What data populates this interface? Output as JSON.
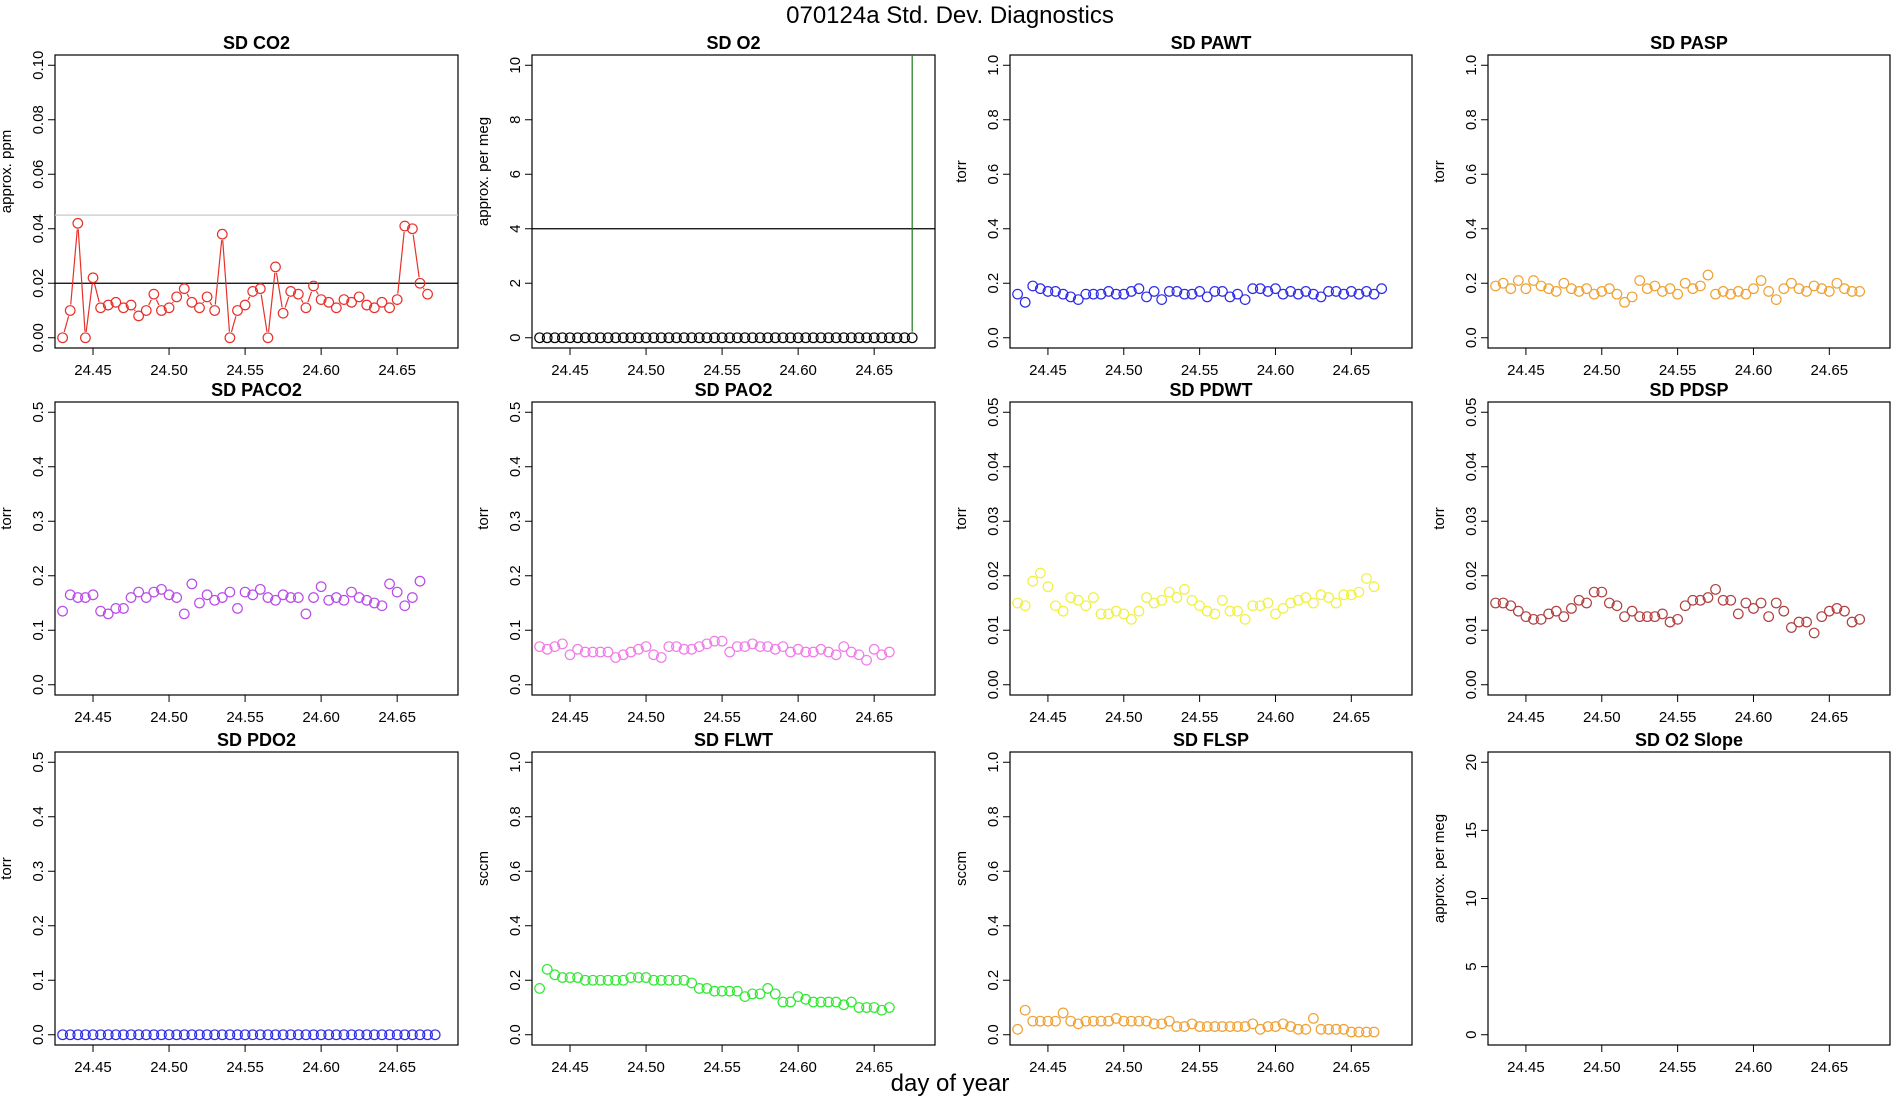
{
  "title": "070124a   Std. Dev. Diagnostics",
  "xlabel": "day of year",
  "colors": {
    "frame": "#000000",
    "ref_dark": "#000000",
    "ref_light": "#c8c8c8",
    "vline": "#1a7a1a"
  },
  "chart_data": [
    {
      "type": "scatter",
      "title": "SD CO2",
      "ylabel": "approx. ppm",
      "color": "#e8302a",
      "connect": true,
      "xlim": [
        24.425,
        24.69
      ],
      "ylim": [
        0,
        0.1
      ],
      "yticks": [
        "0.00",
        "0.02",
        "0.04",
        "0.06",
        "0.08",
        "0.10"
      ],
      "xticks": [
        "24.45",
        "24.50",
        "24.55",
        "24.60",
        "24.65"
      ],
      "hlines": [
        {
          "y": 0.02,
          "color": "#000000"
        },
        {
          "y": 0.045,
          "color": "#c8c8c8"
        }
      ],
      "series": [
        {
          "x0": 24.43,
          "dx": 0.005,
          "values": [
            0.0,
            0.01,
            0.042,
            0.0,
            0.022,
            0.011,
            0.012,
            0.013,
            0.011,
            0.012,
            0.008,
            0.01,
            0.016,
            0.01,
            0.011,
            0.015,
            0.018,
            0.013,
            0.011,
            0.015,
            0.01,
            0.038,
            0.0,
            0.01,
            0.012,
            0.017,
            0.018,
            0.0,
            0.026,
            0.009,
            0.017,
            0.016,
            0.011,
            0.019,
            0.014,
            0.013,
            0.011,
            0.014,
            0.013,
            0.015,
            0.012,
            0.011,
            0.013,
            0.011,
            0.014,
            0.041,
            0.04,
            0.02,
            0.016
          ]
        }
      ]
    },
    {
      "type": "scatter",
      "title": "SD O2",
      "ylabel": "approx. per meg",
      "color": "#000000",
      "connect": false,
      "xlim": [
        24.425,
        24.69
      ],
      "ylim": [
        0,
        10
      ],
      "yticks": [
        "0",
        "2",
        "4",
        "6",
        "8",
        "10"
      ],
      "xticks": [
        "24.45",
        "24.50",
        "24.55",
        "24.60",
        "24.65"
      ],
      "hlines": [
        {
          "y": 4,
          "color": "#000000"
        }
      ],
      "vlines": [
        {
          "x": 24.675,
          "color": "#1a7a1a"
        }
      ],
      "series": [
        {
          "x0": 24.43,
          "dx": 0.005,
          "values": [
            0,
            0,
            0,
            0,
            0,
            0,
            0,
            0,
            0,
            0,
            0,
            0,
            0,
            0,
            0,
            0,
            0,
            0,
            0,
            0,
            0,
            0,
            0,
            0,
            0,
            0,
            0,
            0,
            0,
            0,
            0,
            0,
            0,
            0,
            0,
            0,
            0,
            0,
            0,
            0,
            0,
            0,
            0,
            0,
            0,
            0,
            0,
            0,
            0,
            0
          ]
        }
      ]
    },
    {
      "type": "scatter",
      "title": "SD PAWT",
      "ylabel": "torr",
      "color": "#2a2ae8",
      "connect": false,
      "xlim": [
        24.425,
        24.69
      ],
      "ylim": [
        0,
        1
      ],
      "yticks": [
        "0.0",
        "0.2",
        "0.4",
        "0.6",
        "0.8",
        "1.0"
      ],
      "xticks": [
        "24.45",
        "24.50",
        "24.55",
        "24.60",
        "24.65"
      ],
      "series": [
        {
          "x0": 24.43,
          "dx": 0.005,
          "values": [
            0.16,
            0.13,
            0.19,
            0.18,
            0.17,
            0.17,
            0.16,
            0.15,
            0.14,
            0.16,
            0.16,
            0.16,
            0.17,
            0.16,
            0.16,
            0.17,
            0.18,
            0.15,
            0.17,
            0.14,
            0.17,
            0.17,
            0.16,
            0.16,
            0.17,
            0.15,
            0.17,
            0.17,
            0.15,
            0.16,
            0.14,
            0.18,
            0.18,
            0.17,
            0.18,
            0.16,
            0.17,
            0.16,
            0.17,
            0.16,
            0.15,
            0.17,
            0.17,
            0.16,
            0.17,
            0.16,
            0.17,
            0.16,
            0.18
          ]
        }
      ]
    },
    {
      "type": "scatter",
      "title": "SD PASP",
      "ylabel": "torr",
      "color": "#f0a030",
      "connect": false,
      "xlim": [
        24.425,
        24.69
      ],
      "ylim": [
        0,
        1
      ],
      "yticks": [
        "0.0",
        "0.2",
        "0.4",
        "0.6",
        "0.8",
        "1.0"
      ],
      "xticks": [
        "24.45",
        "24.50",
        "24.55",
        "24.60",
        "24.65"
      ],
      "series": [
        {
          "x0": 24.43,
          "dx": 0.005,
          "values": [
            0.19,
            0.2,
            0.18,
            0.21,
            0.18,
            0.21,
            0.19,
            0.18,
            0.17,
            0.2,
            0.18,
            0.17,
            0.18,
            0.16,
            0.17,
            0.18,
            0.16,
            0.13,
            0.15,
            0.21,
            0.18,
            0.19,
            0.17,
            0.18,
            0.16,
            0.2,
            0.18,
            0.19,
            0.23,
            0.16,
            0.17,
            0.16,
            0.17,
            0.16,
            0.18,
            0.21,
            0.17,
            0.14,
            0.18,
            0.2,
            0.18,
            0.17,
            0.19,
            0.18,
            0.17,
            0.2,
            0.18,
            0.17,
            0.17
          ]
        }
      ]
    },
    {
      "type": "scatter",
      "title": "SD PACO2",
      "ylabel": "torr",
      "color": "#b84ae8",
      "connect": false,
      "xlim": [
        24.425,
        24.69
      ],
      "ylim": [
        0,
        0.5
      ],
      "yticks": [
        "0.0",
        "0.1",
        "0.2",
        "0.3",
        "0.4",
        "0.5"
      ],
      "xticks": [
        "24.45",
        "24.50",
        "24.55",
        "24.60",
        "24.65"
      ],
      "series": [
        {
          "x0": 24.43,
          "dx": 0.005,
          "values": [
            0.135,
            0.165,
            0.16,
            0.16,
            0.165,
            0.135,
            0.13,
            0.14,
            0.14,
            0.16,
            0.17,
            0.16,
            0.17,
            0.175,
            0.165,
            0.16,
            0.13,
            0.185,
            0.15,
            0.165,
            0.155,
            0.16,
            0.17,
            0.14,
            0.17,
            0.165,
            0.175,
            0.16,
            0.155,
            0.165,
            0.16,
            0.16,
            0.13,
            0.16,
            0.18,
            0.155,
            0.16,
            0.155,
            0.17,
            0.16,
            0.155,
            0.15,
            0.145,
            0.185,
            0.17,
            0.145,
            0.16,
            0.19
          ]
        }
      ]
    },
    {
      "type": "scatter",
      "title": "SD PAO2",
      "ylabel": "torr",
      "color": "#f07ae8",
      "connect": false,
      "xlim": [
        24.425,
        24.69
      ],
      "ylim": [
        0,
        0.5
      ],
      "yticks": [
        "0.0",
        "0.1",
        "0.2",
        "0.3",
        "0.4",
        "0.5"
      ],
      "xticks": [
        "24.45",
        "24.50",
        "24.55",
        "24.60",
        "24.65"
      ],
      "series": [
        {
          "x0": 24.43,
          "dx": 0.005,
          "values": [
            0.07,
            0.065,
            0.07,
            0.075,
            0.055,
            0.065,
            0.06,
            0.06,
            0.06,
            0.06,
            0.05,
            0.055,
            0.06,
            0.065,
            0.07,
            0.055,
            0.05,
            0.07,
            0.07,
            0.065,
            0.065,
            0.07,
            0.075,
            0.08,
            0.08,
            0.06,
            0.07,
            0.07,
            0.075,
            0.07,
            0.07,
            0.065,
            0.07,
            0.06,
            0.065,
            0.06,
            0.06,
            0.065,
            0.06,
            0.055,
            0.07,
            0.06,
            0.055,
            0.045,
            0.065,
            0.055,
            0.06
          ]
        }
      ]
    },
    {
      "type": "scatter",
      "title": "SD PDWT",
      "ylabel": "torr",
      "color": "#f0f040",
      "connect": false,
      "xlim": [
        24.425,
        24.69
      ],
      "ylim": [
        0,
        0.05
      ],
      "yticks": [
        "0.00",
        "0.01",
        "0.02",
        "0.03",
        "0.04",
        "0.05"
      ],
      "xticks": [
        "24.45",
        "24.50",
        "24.55",
        "24.60",
        "24.65"
      ],
      "series": [
        {
          "x0": 24.43,
          "dx": 0.005,
          "values": [
            0.015,
            0.0145,
            0.019,
            0.0205,
            0.018,
            0.0145,
            0.0135,
            0.016,
            0.0155,
            0.0145,
            0.016,
            0.013,
            0.013,
            0.0135,
            0.013,
            0.012,
            0.0135,
            0.016,
            0.015,
            0.0155,
            0.017,
            0.016,
            0.0175,
            0.0155,
            0.0145,
            0.0135,
            0.013,
            0.0155,
            0.0135,
            0.0135,
            0.012,
            0.0145,
            0.0145,
            0.015,
            0.013,
            0.014,
            0.015,
            0.0155,
            0.016,
            0.015,
            0.0165,
            0.016,
            0.015,
            0.0165,
            0.0165,
            0.017,
            0.0195,
            0.018
          ]
        }
      ]
    },
    {
      "type": "scatter",
      "title": "SD PDSP",
      "ylabel": "torr",
      "color": "#b04040",
      "connect": false,
      "xlim": [
        24.425,
        24.69
      ],
      "ylim": [
        0,
        0.05
      ],
      "yticks": [
        "0.00",
        "0.01",
        "0.02",
        "0.03",
        "0.04",
        "0.05"
      ],
      "xticks": [
        "24.45",
        "24.50",
        "24.55",
        "24.60",
        "24.65"
      ],
      "series": [
        {
          "x0": 24.43,
          "dx": 0.005,
          "values": [
            0.015,
            0.015,
            0.0145,
            0.0135,
            0.0125,
            0.012,
            0.012,
            0.013,
            0.0135,
            0.0125,
            0.014,
            0.0155,
            0.015,
            0.017,
            0.017,
            0.015,
            0.0145,
            0.0125,
            0.0135,
            0.0125,
            0.0125,
            0.0125,
            0.013,
            0.0115,
            0.012,
            0.0145,
            0.0155,
            0.0155,
            0.016,
            0.0175,
            0.0155,
            0.0155,
            0.013,
            0.015,
            0.014,
            0.015,
            0.0125,
            0.015,
            0.0135,
            0.0105,
            0.0115,
            0.0115,
            0.0095,
            0.0125,
            0.0135,
            0.014,
            0.0135,
            0.0115,
            0.012
          ]
        }
      ]
    },
    {
      "type": "scatter",
      "title": "SD PDO2",
      "ylabel": "torr",
      "color": "#2a2ae8",
      "connect": false,
      "xlim": [
        24.425,
        24.69
      ],
      "ylim": [
        0,
        0.5
      ],
      "yticks": [
        "0.0",
        "0.1",
        "0.2",
        "0.3",
        "0.4",
        "0.5"
      ],
      "xticks": [
        "24.45",
        "24.50",
        "24.55",
        "24.60",
        "24.65"
      ],
      "series": [
        {
          "x0": 24.43,
          "dx": 0.005,
          "values": [
            0,
            0,
            0,
            0,
            0,
            0,
            0,
            0,
            0,
            0,
            0,
            0,
            0,
            0,
            0,
            0,
            0,
            0,
            0,
            0,
            0,
            0,
            0,
            0,
            0,
            0,
            0,
            0,
            0,
            0,
            0,
            0,
            0,
            0,
            0,
            0,
            0,
            0,
            0,
            0,
            0,
            0,
            0,
            0,
            0,
            0,
            0,
            0,
            0,
            0
          ]
        }
      ]
    },
    {
      "type": "scatter",
      "title": "SD FLWT",
      "ylabel": "sccm",
      "color": "#30e830",
      "connect": false,
      "xlim": [
        24.425,
        24.69
      ],
      "ylim": [
        0,
        1
      ],
      "yticks": [
        "0.0",
        "0.2",
        "0.4",
        "0.6",
        "0.8",
        "1.0"
      ],
      "xticks": [
        "24.45",
        "24.50",
        "24.55",
        "24.60",
        "24.65"
      ],
      "series": [
        {
          "x0": 24.43,
          "dx": 0.005,
          "values": [
            0.17,
            0.24,
            0.22,
            0.21,
            0.21,
            0.21,
            0.2,
            0.2,
            0.2,
            0.2,
            0.2,
            0.2,
            0.21,
            0.21,
            0.21,
            0.2,
            0.2,
            0.2,
            0.2,
            0.2,
            0.19,
            0.17,
            0.17,
            0.16,
            0.16,
            0.16,
            0.16,
            0.14,
            0.15,
            0.15,
            0.17,
            0.15,
            0.12,
            0.12,
            0.14,
            0.13,
            0.12,
            0.12,
            0.12,
            0.12,
            0.11,
            0.12,
            0.1,
            0.1,
            0.1,
            0.09,
            0.1
          ]
        }
      ]
    },
    {
      "type": "scatter",
      "title": "SD FLSP",
      "ylabel": "sccm",
      "color": "#f0a030",
      "connect": false,
      "xlim": [
        24.425,
        24.69
      ],
      "ylim": [
        0,
        1
      ],
      "yticks": [
        "0.0",
        "0.2",
        "0.4",
        "0.6",
        "0.8",
        "1.0"
      ],
      "xticks": [
        "24.45",
        "24.50",
        "24.55",
        "24.60",
        "24.65"
      ],
      "series": [
        {
          "x0": 24.43,
          "dx": 0.005,
          "values": [
            0.02,
            0.09,
            0.05,
            0.05,
            0.05,
            0.05,
            0.08,
            0.05,
            0.04,
            0.05,
            0.05,
            0.05,
            0.05,
            0.06,
            0.05,
            0.05,
            0.05,
            0.05,
            0.04,
            0.04,
            0.05,
            0.03,
            0.03,
            0.04,
            0.03,
            0.03,
            0.03,
            0.03,
            0.03,
            0.03,
            0.03,
            0.04,
            0.02,
            0.03,
            0.03,
            0.04,
            0.03,
            0.02,
            0.02,
            0.06,
            0.02,
            0.02,
            0.02,
            0.02,
            0.01,
            0.01,
            0.01,
            0.01
          ]
        }
      ]
    },
    {
      "type": "scatter",
      "title": "SD O2 Slope",
      "ylabel": "approx. per meg",
      "color": "#000000",
      "connect": false,
      "xlim": [
        24.425,
        24.69
      ],
      "ylim": [
        0,
        20
      ],
      "yticks": [
        "0",
        "5",
        "10",
        "15",
        "20"
      ],
      "xticks": [
        "24.45",
        "24.50",
        "24.55",
        "24.60",
        "24.65"
      ],
      "series": []
    }
  ]
}
